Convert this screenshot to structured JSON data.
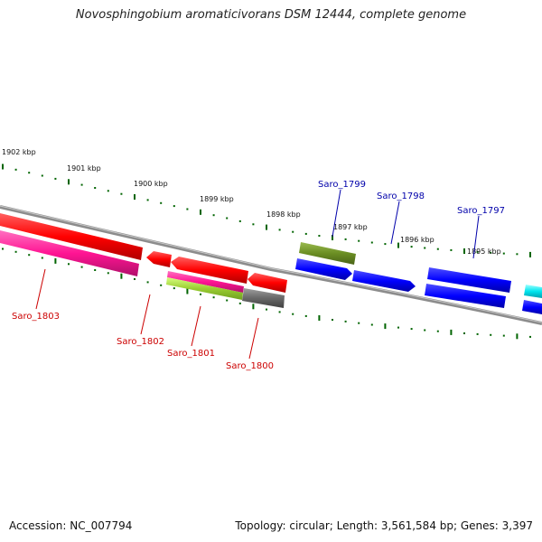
{
  "title": "Novosphingobium aromaticivorans DSM 12444, complete genome",
  "footer": {
    "accession": "Accession: NC_007794",
    "topology": "Topology: circular; Length: 3,561,584 bp; Genes: 3,397"
  },
  "ruler": {
    "labels": [
      "1902 kbp",
      "1901 kbp",
      "1900 kbp",
      "1899 kbp",
      "1898 kbp",
      "1897 kbp",
      "1896 kbp",
      "1895 kbp"
    ]
  },
  "genes": [
    {
      "name": "Saro_1803",
      "color": "#cc0000"
    },
    {
      "name": "Saro_1802",
      "color": "#cc0000"
    },
    {
      "name": "Saro_1801",
      "color": "#cc0000"
    },
    {
      "name": "Saro_1800",
      "color": "#cc0000"
    },
    {
      "name": "Saro_1799",
      "color": "#0000aa"
    },
    {
      "name": "Saro_1798",
      "color": "#0000aa"
    },
    {
      "name": "Saro_1797",
      "color": "#0000aa"
    }
  ],
  "colors": {
    "red": "#ff0000",
    "pink": "#ff1493",
    "blue": "#0000ff",
    "olive": "#6b8e23",
    "lime": "#9acd32",
    "gray": "#696969",
    "cyan": "#00e5ee",
    "tick": "#006400",
    "backbone": "#8c8c8c"
  }
}
